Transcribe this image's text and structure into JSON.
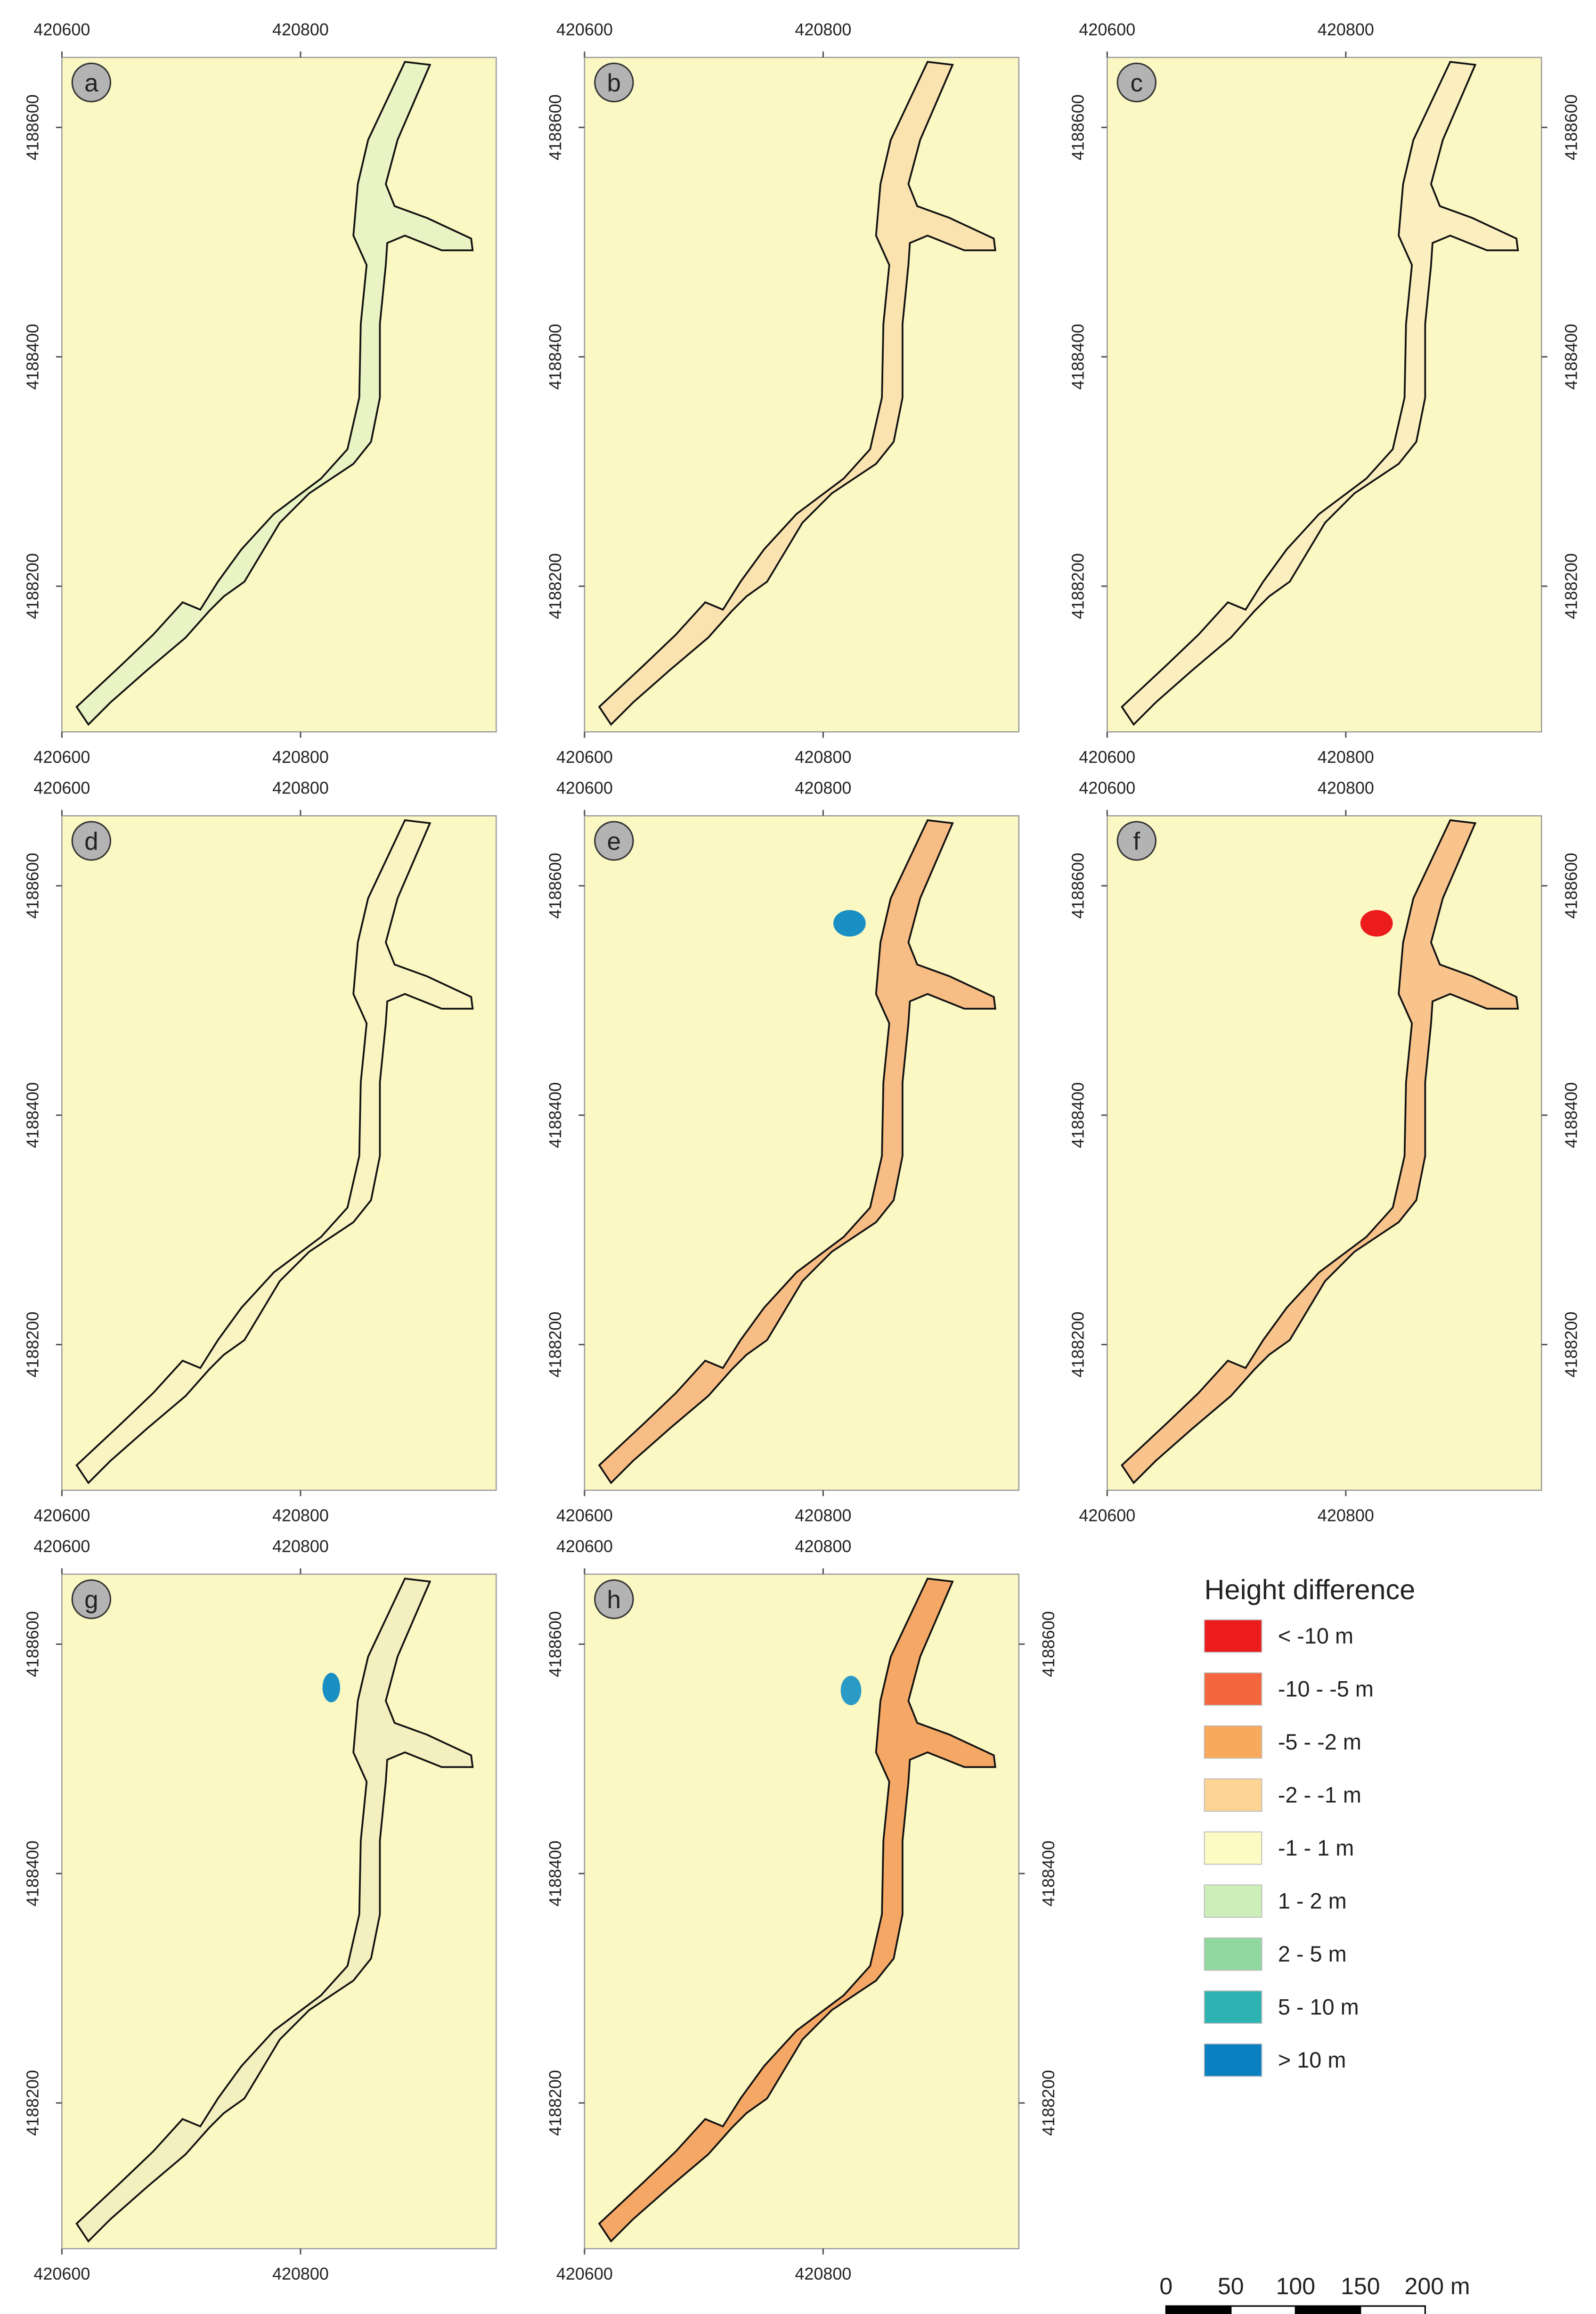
{
  "panels": [
    {
      "label": "a"
    },
    {
      "label": "b"
    },
    {
      "label": "c"
    },
    {
      "label": "d"
    },
    {
      "label": "e"
    },
    {
      "label": "f"
    },
    {
      "label": "g"
    },
    {
      "label": "h"
    }
  ],
  "axes": {
    "xlim": [
      420600,
      420964
    ],
    "ylim": [
      4188073,
      4188661
    ],
    "xticks": [
      420600,
      420800
    ],
    "yticks": [
      4188200,
      4188400,
      4188600
    ]
  },
  "legend": {
    "title": "Height difference",
    "entries": [
      {
        "label": "< -10 m",
        "color": "#ec1c1c"
      },
      {
        "label": "-10 - -5 m",
        "color": "#f4663e"
      },
      {
        "label": "-5 - -2 m",
        "color": "#f9a95c"
      },
      {
        "label": "-2 - -1 m",
        "color": "#fdd493"
      },
      {
        "label": "-1 - 1 m",
        "color": "#fdfac4"
      },
      {
        "label": "1 - 2 m",
        "color": "#cdeeb9"
      },
      {
        "label": "2 - 5 m",
        "color": "#90d8a0"
      },
      {
        "label": "5 - 10 m",
        "color": "#2fb3b2"
      },
      {
        "label": "> 10 m",
        "color": "#0b80c0"
      }
    ]
  },
  "scale_bar": {
    "ticks": [
      0,
      50,
      100,
      150,
      {
        "value": 200,
        "label": "200 m"
      }
    ]
  }
}
